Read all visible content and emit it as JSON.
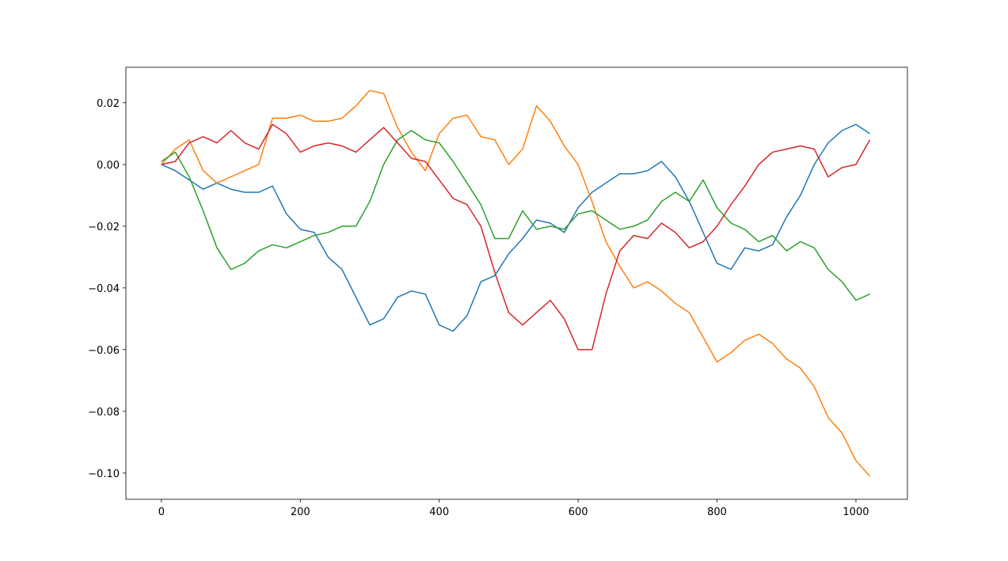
{
  "chart_data": {
    "type": "line",
    "x": [
      0,
      20,
      40,
      60,
      80,
      100,
      120,
      140,
      160,
      180,
      200,
      220,
      240,
      260,
      280,
      300,
      320,
      340,
      360,
      380,
      400,
      420,
      440,
      460,
      480,
      500,
      520,
      540,
      560,
      580,
      600,
      620,
      640,
      660,
      680,
      700,
      720,
      740,
      760,
      780,
      800,
      820,
      840,
      860,
      880,
      900,
      920,
      940,
      960,
      980,
      1000,
      1020
    ],
    "series": [
      {
        "color": "#1f77b4",
        "values": [
          0.0,
          -0.002,
          -0.005,
          -0.008,
          -0.006,
          -0.008,
          -0.009,
          -0.009,
          -0.007,
          -0.016,
          -0.021,
          -0.022,
          -0.03,
          -0.034,
          -0.043,
          -0.052,
          -0.05,
          -0.043,
          -0.041,
          -0.042,
          -0.052,
          -0.054,
          -0.049,
          -0.038,
          -0.036,
          -0.029,
          -0.024,
          -0.018,
          -0.019,
          -0.022,
          -0.014,
          -0.009,
          -0.006,
          -0.003,
          -0.003,
          -0.002,
          0.001,
          -0.004,
          -0.012,
          -0.022,
          -0.032,
          -0.034,
          -0.027,
          -0.028,
          -0.026,
          -0.017,
          -0.01,
          0.0,
          0.007,
          0.011,
          0.013,
          0.01
        ]
      },
      {
        "color": "#ff7f0e",
        "values": [
          0.0,
          0.005,
          0.008,
          -0.002,
          -0.006,
          -0.004,
          -0.002,
          0.0,
          0.015,
          0.015,
          0.016,
          0.014,
          0.014,
          0.015,
          0.019,
          0.024,
          0.023,
          0.012,
          0.004,
          -0.002,
          0.01,
          0.015,
          0.016,
          0.009,
          0.008,
          0.0,
          0.005,
          0.019,
          0.014,
          0.006,
          0.0,
          -0.012,
          -0.025,
          -0.033,
          -0.04,
          -0.038,
          -0.041,
          -0.045,
          -0.048,
          -0.056,
          -0.064,
          -0.061,
          -0.057,
          -0.055,
          -0.058,
          -0.063,
          -0.066,
          -0.072,
          -0.082,
          -0.087,
          -0.096,
          -0.101
        ]
      },
      {
        "color": "#2ca02c",
        "values": [
          0.001,
          0.004,
          -0.004,
          -0.015,
          -0.027,
          -0.034,
          -0.032,
          -0.028,
          -0.026,
          -0.027,
          -0.025,
          -0.023,
          -0.022,
          -0.02,
          -0.02,
          -0.012,
          0.0,
          0.008,
          0.011,
          0.008,
          0.007,
          0.001,
          -0.006,
          -0.013,
          -0.024,
          -0.024,
          -0.015,
          -0.021,
          -0.02,
          -0.021,
          -0.016,
          -0.015,
          -0.018,
          -0.021,
          -0.02,
          -0.018,
          -0.012,
          -0.009,
          -0.012,
          -0.005,
          -0.014,
          -0.019,
          -0.021,
          -0.025,
          -0.023,
          -0.028,
          -0.025,
          -0.027,
          -0.034,
          -0.038,
          -0.044,
          -0.042
        ]
      },
      {
        "color": "#d62728",
        "values": [
          0.0,
          0.001,
          0.007,
          0.009,
          0.007,
          0.011,
          0.007,
          0.005,
          0.013,
          0.01,
          0.004,
          0.006,
          0.007,
          0.006,
          0.004,
          0.008,
          0.012,
          0.007,
          0.002,
          0.001,
          -0.005,
          -0.011,
          -0.013,
          -0.02,
          -0.035,
          -0.048,
          -0.052,
          -0.048,
          -0.044,
          -0.05,
          -0.06,
          -0.06,
          -0.042,
          -0.028,
          -0.023,
          -0.024,
          -0.019,
          -0.022,
          -0.027,
          -0.025,
          -0.02,
          -0.013,
          -0.007,
          0.0,
          0.004,
          0.005,
          0.006,
          0.005,
          -0.004,
          -0.001,
          0.0,
          0.008
        ]
      }
    ],
    "xlim": [
      -51.15,
      1074.15
    ],
    "xticks": [
      0,
      200,
      400,
      600,
      800,
      1000
    ],
    "ylim": [
      -0.1085,
      0.0315
    ],
    "yticks": [
      {
        "value": -0.1,
        "label": "−0.10"
      },
      {
        "value": -0.08,
        "label": "−0.08"
      },
      {
        "value": -0.06,
        "label": "−0.06"
      },
      {
        "value": -0.04,
        "label": "−0.04"
      },
      {
        "value": -0.02,
        "label": "−0.02"
      },
      {
        "value": 0.0,
        "label": "0.00"
      },
      {
        "value": 0.02,
        "label": "0.02"
      }
    ]
  }
}
